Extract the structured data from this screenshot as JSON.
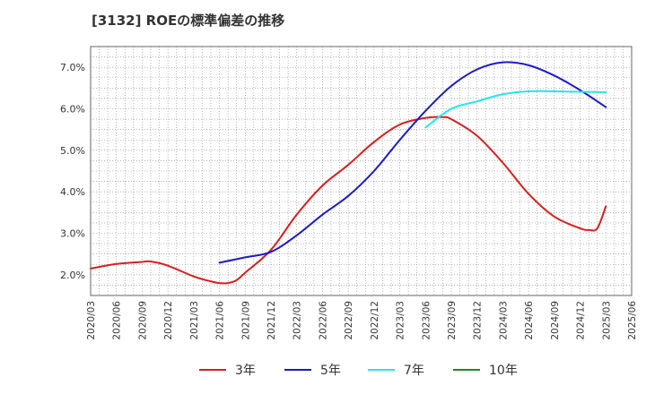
{
  "chart_data": {
    "type": "line",
    "title": "[3132]  ROEの標準偏差の推移",
    "xlabel": "",
    "ylabel": "",
    "ylim": [
      1.5,
      7.5
    ],
    "y_ticks": [
      2.0,
      3.0,
      4.0,
      5.0,
      6.0,
      7.0
    ],
    "y_tick_labels": [
      "2.0%",
      "3.0%",
      "4.0%",
      "5.0%",
      "6.0%",
      "7.0%"
    ],
    "grid": true,
    "legend_position": "bottom",
    "categories": [
      "2020/03",
      "2020/06",
      "2020/09",
      "2020/12",
      "2021/03",
      "2021/06",
      "2021/09",
      "2021/12",
      "2022/03",
      "2022/06",
      "2022/09",
      "2022/12",
      "2023/03",
      "2023/06",
      "2023/09",
      "2023/12",
      "2024/03",
      "2024/06",
      "2024/09",
      "2024/12",
      "2025/03",
      "2025/06"
    ],
    "series": [
      {
        "name": "3年",
        "color": "#dd1c1c",
        "points": [
          [
            "2020/03",
            2.15
          ],
          [
            "2020/06",
            2.26
          ],
          [
            "2020/09",
            2.31
          ],
          [
            "2020/10",
            2.32
          ],
          [
            "2020/12",
            2.22
          ],
          [
            "2021/03",
            1.96
          ],
          [
            "2021/05",
            1.84
          ],
          [
            "2021/06",
            1.8
          ],
          [
            "2021/07",
            1.8
          ],
          [
            "2021/08",
            1.87
          ],
          [
            "2021/09",
            2.05
          ],
          [
            "2021/12",
            2.6
          ],
          [
            "2022/03",
            3.45
          ],
          [
            "2022/06",
            4.15
          ],
          [
            "2022/09",
            4.65
          ],
          [
            "2022/12",
            5.2
          ],
          [
            "2023/03",
            5.62
          ],
          [
            "2023/06",
            5.78
          ],
          [
            "2023/08",
            5.8
          ],
          [
            "2023/09",
            5.75
          ],
          [
            "2023/12",
            5.35
          ],
          [
            "2024/03",
            4.7
          ],
          [
            "2024/06",
            3.95
          ],
          [
            "2024/09",
            3.4
          ],
          [
            "2024/12",
            3.12
          ],
          [
            "2025/01",
            3.08
          ],
          [
            "2025/02",
            3.12
          ],
          [
            "2025/03",
            3.65
          ]
        ]
      },
      {
        "name": "5年",
        "color": "#1a1acc",
        "points": [
          [
            "2021/06",
            2.29
          ],
          [
            "2021/09",
            2.42
          ],
          [
            "2021/12",
            2.55
          ],
          [
            "2022/03",
            2.95
          ],
          [
            "2022/06",
            3.45
          ],
          [
            "2022/09",
            3.9
          ],
          [
            "2022/12",
            4.5
          ],
          [
            "2023/03",
            5.25
          ],
          [
            "2023/06",
            5.95
          ],
          [
            "2023/09",
            6.55
          ],
          [
            "2023/12",
            6.95
          ],
          [
            "2024/03",
            7.12
          ],
          [
            "2024/06",
            7.05
          ],
          [
            "2024/09",
            6.8
          ],
          [
            "2024/12",
            6.45
          ],
          [
            "2025/03",
            6.04
          ]
        ]
      },
      {
        "name": "7年",
        "color": "#22e6f0",
        "points": [
          [
            "2023/06",
            5.55
          ],
          [
            "2023/09",
            6.0
          ],
          [
            "2023/12",
            6.18
          ],
          [
            "2024/03",
            6.35
          ],
          [
            "2024/06",
            6.42
          ],
          [
            "2024/09",
            6.42
          ],
          [
            "2024/12",
            6.41
          ],
          [
            "2025/03",
            6.4
          ]
        ]
      },
      {
        "name": "10年",
        "color": "#1d8a1d",
        "points": []
      }
    ]
  }
}
